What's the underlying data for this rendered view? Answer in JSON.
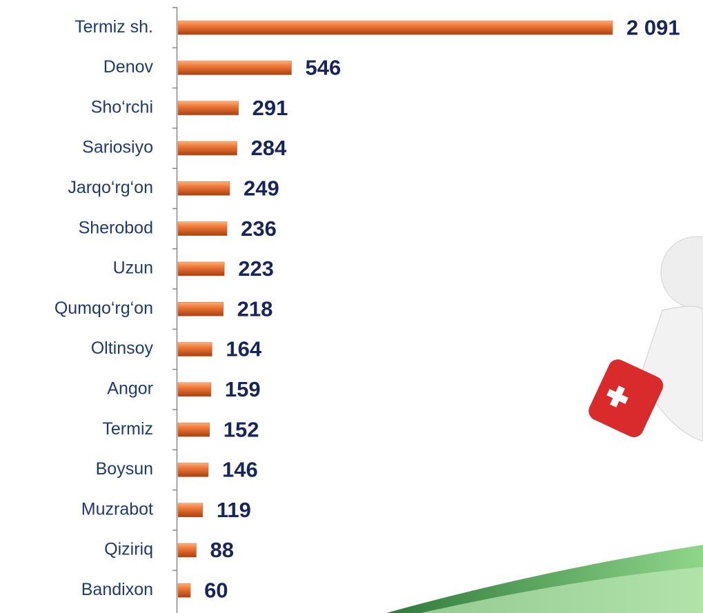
{
  "chart_data": {
    "type": "bar",
    "orientation": "horizontal",
    "categories": [
      "Termiz sh.",
      "Denov",
      "Sho‘rchi",
      "Sariosiyo",
      "Jarqo‘rg‘on",
      "Sherobod",
      "Uzun",
      "Qumqo‘rg‘on",
      "Oltinsoy",
      "Angor",
      "Termiz",
      "Boysun",
      "Muzrabot",
      "Qiziriq",
      "Bandixon"
    ],
    "values": [
      2091,
      546,
      291,
      284,
      249,
      236,
      223,
      218,
      164,
      159,
      152,
      146,
      119,
      88,
      60
    ],
    "value_labels": [
      "2 091",
      "546",
      "291",
      "284",
      "249",
      "236",
      "223",
      "218",
      "164",
      "159",
      "152",
      "146",
      "119",
      "88",
      "60"
    ],
    "color": "#e8652a"
  }
}
